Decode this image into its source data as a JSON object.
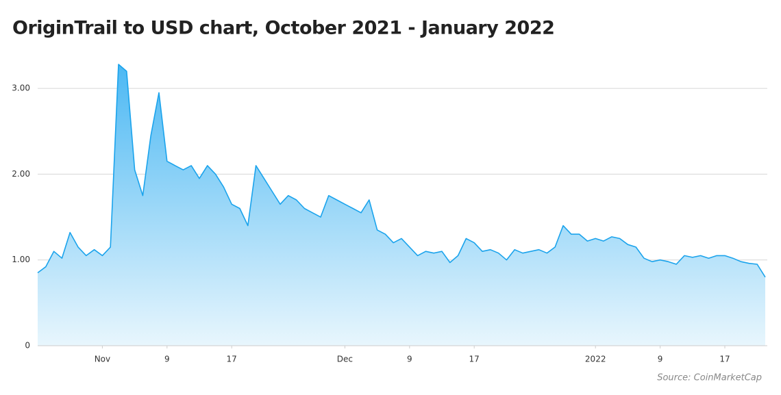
{
  "chart_data": {
    "type": "area",
    "title": "OriginTrail to USD chart, October 2021 - January 2022",
    "source": "Source: CoinMarketCap",
    "x": [
      "2021-10-24",
      "2021-10-25",
      "2021-10-26",
      "2021-10-27",
      "2021-10-28",
      "2021-10-29",
      "2021-10-30",
      "2021-10-31",
      "2021-11-01",
      "2021-11-02",
      "2021-11-03",
      "2021-11-04",
      "2021-11-05",
      "2021-11-06",
      "2021-11-07",
      "2021-11-08",
      "2021-11-09",
      "2021-11-10",
      "2021-11-11",
      "2021-11-12",
      "2021-11-13",
      "2021-11-14",
      "2021-11-15",
      "2021-11-16",
      "2021-11-17",
      "2021-11-18",
      "2021-11-19",
      "2021-11-20",
      "2021-11-21",
      "2021-11-22",
      "2021-11-23",
      "2021-11-24",
      "2021-11-25",
      "2021-11-26",
      "2021-11-27",
      "2021-11-28",
      "2021-11-29",
      "2021-11-30",
      "2021-12-01",
      "2021-12-02",
      "2021-12-03",
      "2021-12-04",
      "2021-12-05",
      "2021-12-06",
      "2021-12-07",
      "2021-12-08",
      "2021-12-09",
      "2021-12-10",
      "2021-12-11",
      "2021-12-12",
      "2021-12-13",
      "2021-12-14",
      "2021-12-15",
      "2021-12-16",
      "2021-12-17",
      "2021-12-18",
      "2021-12-19",
      "2021-12-20",
      "2021-12-21",
      "2021-12-22",
      "2021-12-23",
      "2021-12-24",
      "2021-12-25",
      "2021-12-26",
      "2021-12-27",
      "2021-12-28",
      "2021-12-29",
      "2021-12-30",
      "2021-12-31",
      "2022-01-01",
      "2022-01-02",
      "2022-01-03",
      "2022-01-04",
      "2022-01-05",
      "2022-01-06",
      "2022-01-07",
      "2022-01-08",
      "2022-01-09",
      "2022-01-10",
      "2022-01-11",
      "2022-01-12",
      "2022-01-13",
      "2022-01-14",
      "2022-01-15",
      "2022-01-16",
      "2022-01-17",
      "2022-01-18",
      "2022-01-19",
      "2022-01-20",
      "2022-01-21",
      "2022-01-22"
    ],
    "series": [
      {
        "name": "OriginTrail",
        "color": "#1aa3ec",
        "values": [
          0.85,
          0.92,
          1.1,
          1.02,
          1.32,
          1.15,
          1.05,
          1.12,
          1.05,
          1.15,
          3.28,
          3.2,
          2.05,
          1.75,
          2.45,
          2.95,
          2.15,
          2.1,
          2.05,
          2.1,
          1.95,
          2.1,
          2.0,
          1.85,
          1.65,
          1.6,
          1.4,
          2.1,
          1.95,
          1.8,
          1.65,
          1.75,
          1.7,
          1.6,
          1.55,
          1.5,
          1.75,
          1.7,
          1.65,
          1.6,
          1.55,
          1.7,
          1.35,
          1.3,
          1.2,
          1.25,
          1.15,
          1.05,
          1.1,
          1.08,
          1.1,
          0.97,
          1.05,
          1.25,
          1.2,
          1.1,
          1.12,
          1.08,
          1.0,
          1.12,
          1.08,
          1.1,
          1.12,
          1.08,
          1.15,
          1.4,
          1.3,
          1.3,
          1.22,
          1.25,
          1.22,
          1.27,
          1.25,
          1.18,
          1.15,
          1.02,
          0.98,
          1.0,
          0.98,
          0.95,
          1.05,
          1.03,
          1.05,
          1.02,
          1.05,
          1.05,
          1.02,
          0.98,
          0.96,
          0.95,
          0.8
        ]
      }
    ],
    "xlim": [
      "2021-10-24",
      "2022-01-22"
    ],
    "xticks": [
      {
        "value": "2021-11-01",
        "label": "Nov"
      },
      {
        "value": "2021-11-09",
        "label": "9"
      },
      {
        "value": "2021-11-17",
        "label": "17"
      },
      {
        "value": "2021-12-01",
        "label": "Dec"
      },
      {
        "value": "2021-12-09",
        "label": "9"
      },
      {
        "value": "2021-12-17",
        "label": "17"
      },
      {
        "value": "2022-01-01",
        "label": "2022"
      },
      {
        "value": "2022-01-09",
        "label": "9"
      },
      {
        "value": "2022-01-17",
        "label": "17"
      }
    ],
    "ylim": [
      0,
      3.4
    ],
    "yticks": [
      0,
      {
        "value": 1,
        "label": "1.00"
      },
      {
        "value": 2,
        "label": "2.00"
      },
      {
        "value": 3,
        "label": "3.00"
      }
    ],
    "grid": true
  }
}
